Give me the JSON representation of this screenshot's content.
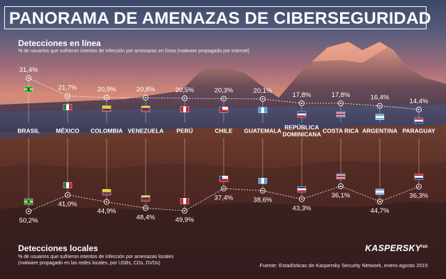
{
  "title": "PANORAMA DE AMENAZAS DE CIBERSEGURIDAD",
  "online": {
    "heading": "Detecciones en línea",
    "description": "% de usuarios que sufrieron intentos de infección por amenazas en línea (malware propagado por internet)"
  },
  "local": {
    "heading": "Detecciones locales",
    "description_line1": "% de usuarios que sufrieron intentos de infección por amenazas locales",
    "description_line2": "(malware propagado en las redes locales, por USBs, CDs, DVDs)"
  },
  "source": "Fuente: Estadísticas de Kaspersky Security Network, enero-agosto 2015",
  "logo": "KASPERSKY",
  "logo_suffix": "lab",
  "colors": {
    "accent": "#ffffff",
    "sky_top": "#3d4a6a",
    "sky_mid": "#c97a72",
    "ground": "#5a3328"
  },
  "chart_data": {
    "type": "line",
    "categories": [
      "BRASIL",
      "MÉXICO",
      "COLOMBIA",
      "VENEZUELA",
      "PERÚ",
      "CHILE",
      "GUATEMALA",
      "REPÚBLICA DOMINICANA",
      "COSTA RICA",
      "ARGENTINA",
      "PARAGUAY"
    ],
    "category_lines": [
      [
        "BRASIL"
      ],
      [
        "MÉXICO"
      ],
      [
        "COLOMBIA"
      ],
      [
        "VENEZUELA"
      ],
      [
        "PERÚ"
      ],
      [
        "CHILE"
      ],
      [
        "GUATEMALA"
      ],
      [
        "REPÚBLICA",
        "DOMINICANA"
      ],
      [
        "COSTA RICA"
      ],
      [
        "ARGENTINA"
      ],
      [
        "PARAGUAY"
      ]
    ],
    "series": [
      {
        "name": "Detecciones en línea",
        "values": [
          31.4,
          21.7,
          20.9,
          20.8,
          20.5,
          20.3,
          20.1,
          17.8,
          17.8,
          16.4,
          14.4
        ],
        "labels": [
          "31,4%",
          "21,7%",
          "20,9%",
          "20,8%",
          "20,5%",
          "20,3%",
          "20,1%",
          "17,8%",
          "17,8%",
          "16,4%",
          "14,4%"
        ]
      },
      {
        "name": "Detecciones locales",
        "values": [
          50.2,
          41.0,
          44.9,
          48.4,
          49.9,
          37.4,
          38.6,
          43.3,
          36.1,
          44.7,
          36.3
        ],
        "labels": [
          "50,2%",
          "41,0%",
          "44,9%",
          "48,4%",
          "49,9%",
          "37,4%",
          "38,6%",
          "43,3%",
          "36,1%",
          "44,7%",
          "36,3%"
        ]
      }
    ],
    "flags": [
      "brazil-flag-icon",
      "mexico-flag-icon",
      "colombia-flag-icon",
      "venezuela-flag-icon",
      "peru-flag-icon",
      "chile-flag-icon",
      "guatemala-flag-icon",
      "dominican-republic-flag-icon",
      "costa-rica-flag-icon",
      "argentina-flag-icon",
      "paraguay-flag-icon"
    ]
  }
}
